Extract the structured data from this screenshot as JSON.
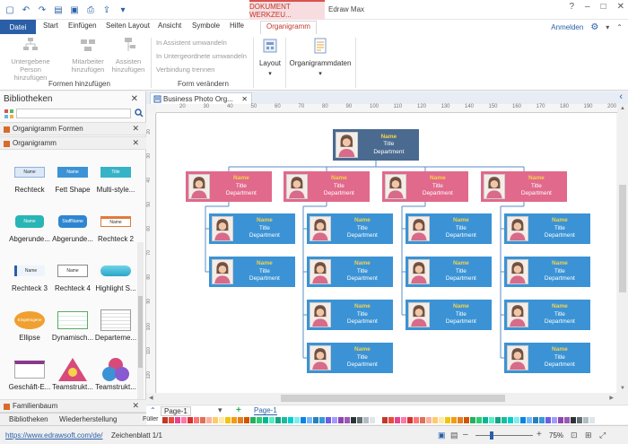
{
  "titlebar": {
    "context_label": "DOKUMENT WERKZEU...",
    "app_title": "Edraw Max",
    "qat_icons": [
      "new-icon",
      "undo-icon",
      "redo-icon",
      "open-icon",
      "save-icon",
      "print-icon",
      "export-icon",
      "more-icon"
    ]
  },
  "tabs": {
    "file": "Datei",
    "items": [
      "Start",
      "Einfügen",
      "Seiten Layout",
      "Ansicht",
      "Symbole",
      "Hilfe"
    ],
    "context": "Organigramm",
    "signin": "Anmelden"
  },
  "ribbon": {
    "group1": {
      "label": "Formen hinzufügen",
      "buttons": [
        {
          "label1": "Untergebene",
          "label2": "Person hinzufügen"
        },
        {
          "label1": "Mitarbeiter",
          "label2": "hinzufügen"
        },
        {
          "label1": "Assisten",
          "label2": "hinzufügen"
        }
      ]
    },
    "group2": {
      "label": "Form verändern",
      "items": [
        "In Assistent umwandeln",
        "In Untergeordnete umwandeln",
        "Verbindung trennen"
      ]
    },
    "layout_label": "Layout",
    "orgdata_label": "Organigrammdaten"
  },
  "library": {
    "title": "Bibliotheken",
    "section1": "Organigramm Formen",
    "section2": "Organigramm",
    "section3": "Familienbaum",
    "shapes": [
      {
        "label": "Rechteck",
        "kind": "rect-light",
        "text": "Name"
      },
      {
        "label": "Fett Shape",
        "kind": "rect-blue",
        "text": "Name"
      },
      {
        "label": "Multi-style...",
        "kind": "rect-teal",
        "text": "Title"
      },
      {
        "label": "Abgerunde...",
        "kind": "round-teal",
        "text": "Name"
      },
      {
        "label": "Abgerunde...",
        "kind": "round-blue",
        "text": "StaffName"
      },
      {
        "label": "Rechteck 2",
        "kind": "rect-orange",
        "text": "Name"
      },
      {
        "label": "Rechteck 3",
        "kind": "rect-blue-outline",
        "text": "Name"
      },
      {
        "label": "Rechteck 4",
        "kind": "rect-gray",
        "text": "Name"
      },
      {
        "label": "Highlight S...",
        "kind": "rect-cyan",
        "text": ""
      },
      {
        "label": "Ellipse",
        "kind": "ellipse-orange",
        "text": "Eingetragene"
      },
      {
        "label": "Dynamisch...",
        "kind": "table",
        "text": ""
      },
      {
        "label": "Departeme...",
        "kind": "table2",
        "text": ""
      },
      {
        "label": "Geschäft-E...",
        "kind": "business",
        "text": ""
      },
      {
        "label": "Teamstrukt...",
        "kind": "triangle",
        "text": ""
      },
      {
        "label": "Teamstrukt...",
        "kind": "circles",
        "text": ""
      }
    ],
    "bottom_tabs": [
      "Bibliotheken",
      "Wiederherstellung"
    ]
  },
  "document": {
    "tab_title": "Business Photo Org...",
    "ruler_labels": [
      "20",
      "30",
      "40",
      "50",
      "60",
      "70",
      "80",
      "90",
      "100",
      "110",
      "120",
      "130",
      "140",
      "150",
      "160",
      "170",
      "180",
      "190",
      "200",
      "210"
    ],
    "ruler_left_labels": [
      "20",
      "30",
      "40",
      "50",
      "60",
      "70",
      "80",
      "90",
      "100",
      "110",
      "120"
    ],
    "page_tabs": [
      "Page-1",
      "Page-1"
    ],
    "fill_label": "Füller"
  },
  "org": {
    "card_name": "Name",
    "card_title": "Title",
    "card_dept": "Department"
  },
  "status": {
    "url": "https://www.edrawsoft.com/de/",
    "sheet": "Zeichenblatt 1/1",
    "zoom": "75%"
  },
  "colors": {
    "accent": "#2a5fa8",
    "top_card": "#4a6a90",
    "pink_card": "#e1698c",
    "blue_card": "#3b93d5",
    "palette": [
      "#c0392b",
      "#e74c3c",
      "#e84393",
      "#fd79a8",
      "#d63031",
      "#ff7675",
      "#e17055",
      "#fab1a0",
      "#fdcb6e",
      "#ffeaa7",
      "#f1c40f",
      "#f39c12",
      "#e67e22",
      "#d35400",
      "#27ae60",
      "#2ecc71",
      "#00b894",
      "#55efc4",
      "#16a085",
      "#1abc9c",
      "#00cec9",
      "#81ecec",
      "#0984e3",
      "#74b9ff",
      "#2980b9",
      "#3498db",
      "#6c5ce7",
      "#a29bfe",
      "#8e44ad",
      "#9b59b6",
      "#2d3436",
      "#636e72",
      "#b2bec3",
      "#dfe6e9",
      "#ffffff",
      "#c0392b",
      "#e74c3c",
      "#e84393",
      "#fd79a8",
      "#d63031",
      "#ff7675",
      "#e17055",
      "#fab1a0",
      "#fdcb6e",
      "#ffeaa7",
      "#f1c40f",
      "#f39c12",
      "#e67e22",
      "#d35400",
      "#27ae60",
      "#2ecc71",
      "#00b894",
      "#55efc4",
      "#16a085",
      "#1abc9c",
      "#00cec9",
      "#81ecec",
      "#0984e3",
      "#74b9ff",
      "#2980b9",
      "#3498db",
      "#6c5ce7",
      "#a29bfe",
      "#8e44ad",
      "#9b59b6",
      "#2d3436",
      "#636e72",
      "#b2bec3",
      "#dfe6e9",
      "#ffffff"
    ]
  }
}
